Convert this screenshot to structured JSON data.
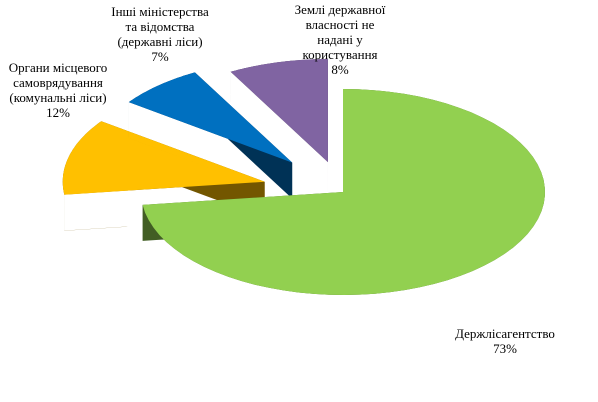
{
  "chart_data": {
    "type": "pie",
    "categories": [
      "Держлісагентство",
      "Органи місцевого\nсамоврядування\n(комунальні ліси)",
      "Інші міністерства\nта відомства\n(державні ліси)",
      "Землі державної\nвласності не\nнадані у\nкористування"
    ],
    "values": [
      73,
      12,
      7,
      8
    ],
    "value_labels": [
      "73%",
      "12%",
      "7%",
      "8%"
    ],
    "colors": [
      "#92d050",
      "#ffc000",
      "#0070c0",
      "#8064a2"
    ]
  }
}
